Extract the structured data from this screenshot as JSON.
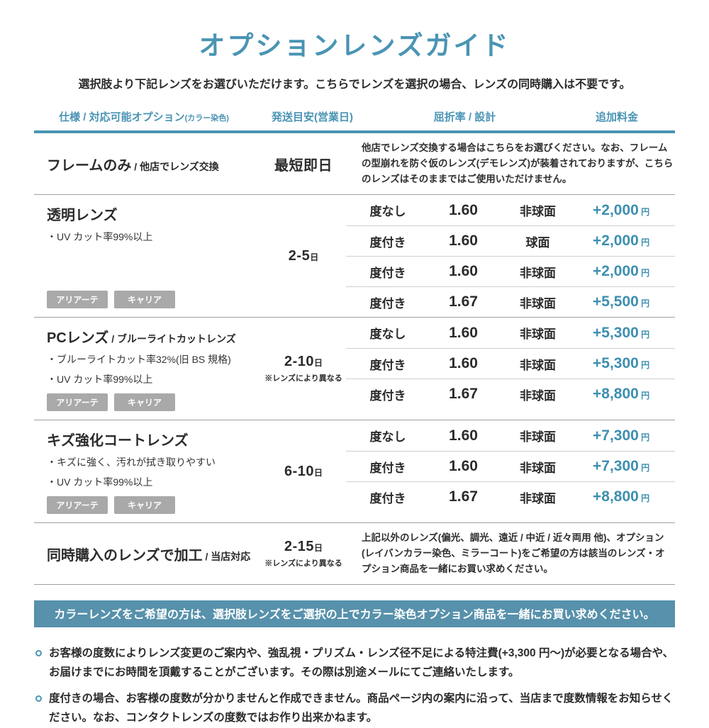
{
  "page": {
    "title": "オプションレンズガイド",
    "subtitle": "選択肢より下記レンズをお選びいただけます。こちらでレンズを選択の場合、レンズの同時購入は不要です。"
  },
  "colors": {
    "accent": "#4a94b4",
    "price": "#3d8fb0",
    "banner_bg": "#5791ab",
    "tag_bg": "#a9a9a9",
    "text": "#2b2b2b"
  },
  "table": {
    "headers": {
      "spec": "仕様 / 対応可能オプション",
      "spec_small": "(カラー染色)",
      "shipping": "発送目安(営業日)",
      "refraction": "屈折率 / 設計",
      "price": "追加料金"
    },
    "rows": [
      {
        "name": "フレームのみ",
        "name_suffix": "/ 他店でレンズ交換",
        "features": [],
        "tags": [],
        "shipping": "最短即日",
        "shipping_unit": "",
        "shipping_note": "",
        "description": "他店でレンズ交換する場合はこちらをお選びください。なお、フレームの型崩れを防ぐ仮のレンズ(デモレンズ)が装着されておりますが、こちらのレンズはそのままではご使用いただけません。",
        "options": []
      },
      {
        "name": "透明レンズ",
        "name_suffix": "",
        "features": [
          "・UV カット率99%以上"
        ],
        "tags": [
          "アリアーテ",
          "キャリア"
        ],
        "shipping": "2-5",
        "shipping_unit": "日",
        "shipping_note": "",
        "description": "",
        "options": [
          {
            "type": "度なし",
            "index": "1.60",
            "design": "非球面",
            "price": "+2,000",
            "unit": "円"
          },
          {
            "type": "度付き",
            "index": "1.60",
            "design": "球面",
            "price": "+2,000",
            "unit": "円"
          },
          {
            "type": "度付き",
            "index": "1.60",
            "design": "非球面",
            "price": "+2,000",
            "unit": "円"
          },
          {
            "type": "度付き",
            "index": "1.67",
            "design": "非球面",
            "price": "+5,500",
            "unit": "円"
          }
        ]
      },
      {
        "name": "PCレンズ",
        "name_suffix": "/ ブルーライトカットレンズ",
        "features": [
          "・ブルーライトカット率32%(旧 BS 規格)",
          "・UV カット率99%以上"
        ],
        "tags": [
          "アリアーテ",
          "キャリア"
        ],
        "shipping": "2-10",
        "shipping_unit": "日",
        "shipping_note": "※レンズにより異なる",
        "description": "",
        "options": [
          {
            "type": "度なし",
            "index": "1.60",
            "design": "非球面",
            "price": "+5,300",
            "unit": "円"
          },
          {
            "type": "度付き",
            "index": "1.60",
            "design": "非球面",
            "price": "+5,300",
            "unit": "円"
          },
          {
            "type": "度付き",
            "index": "1.67",
            "design": "非球面",
            "price": "+8,800",
            "unit": "円"
          }
        ]
      },
      {
        "name": "キズ強化コートレンズ",
        "name_suffix": "",
        "features": [
          "・キズに強く、汚れが拭き取りやすい",
          "・UV カット率99%以上"
        ],
        "tags": [
          "アリアーテ",
          "キャリア"
        ],
        "shipping": "6-10",
        "shipping_unit": "日",
        "shipping_note": "",
        "description": "",
        "options": [
          {
            "type": "度なし",
            "index": "1.60",
            "design": "非球面",
            "price": "+7,300",
            "unit": "円"
          },
          {
            "type": "度付き",
            "index": "1.60",
            "design": "非球面",
            "price": "+7,300",
            "unit": "円"
          },
          {
            "type": "度付き",
            "index": "1.67",
            "design": "非球面",
            "price": "+8,800",
            "unit": "円"
          }
        ]
      },
      {
        "name": "同時購入のレンズで加工",
        "name_suffix": "/ 当店対応",
        "features": [],
        "tags": [],
        "shipping": "2-15",
        "shipping_unit": "日",
        "shipping_note": "※レンズにより異なる",
        "description": "上記以外のレンズ(偏光、調光、遠近 / 中近 / 近々両用 他)、オプション(レイバンカラー染色、ミラーコート)をご希望の方は該当のレンズ・オプション商品を一緒にお買い求めください。",
        "options": []
      }
    ]
  },
  "banner": "カラーレンズをご希望の方は、選択肢レンズをご選択の上でカラー染色オプション商品を一緒にお買い求めください。",
  "notes": [
    "お客様の度数によりレンズ変更のご案内や、強乱視・プリズム・レンズ径不足による特注費(+3,300 円〜)が必要となる場合や、お届けまでにお時間を頂戴することがございます。その際は別途メールにてご連絡いたします。",
    "度付きの場合、お客様の度数が分かりませんと作成できません。商品ページ内の案内に沿って、当店まで度数情報をお知らせください。なお、コンタクトレンズの度数ではお作り出来かねます。"
  ]
}
